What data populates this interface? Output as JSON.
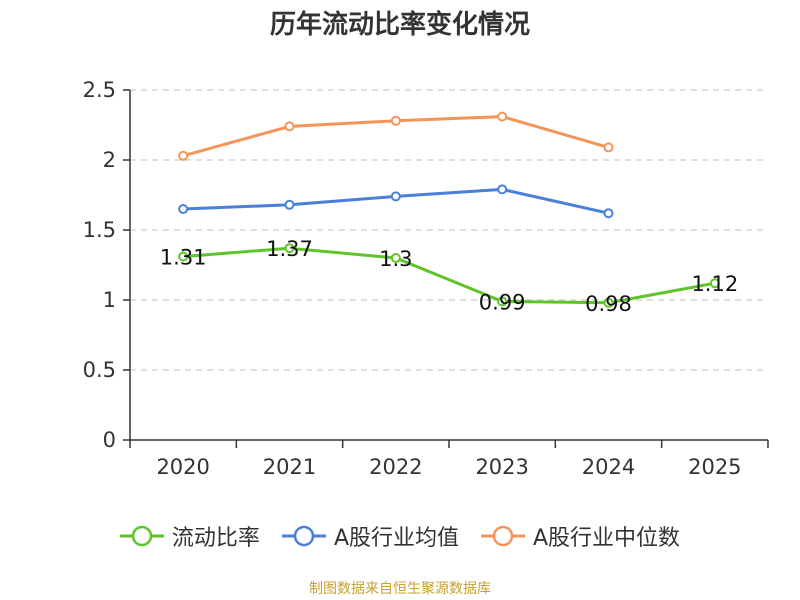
{
  "title": "历年流动比率变化情况",
  "source": "制图数据来自恒生聚源数据库",
  "colors": {
    "flow_ratio": "#5ec42a",
    "industry_avg": "#4a7fdb",
    "industry_median": "#f59458",
    "grid": "#cccccc",
    "axis": "#333333"
  },
  "chart_data": {
    "type": "line",
    "title": "历年流动比率变化情况",
    "categories": [
      "2020",
      "2021",
      "2022",
      "2023",
      "2024",
      "2025"
    ],
    "ylim": [
      0,
      2.5
    ],
    "yticks": [
      "0",
      "0.5",
      "1",
      "1.5",
      "2",
      "2.5"
    ],
    "grid": true,
    "legend_position": "bottom",
    "series": [
      {
        "name": "流动比率",
        "color_key": "flow_ratio",
        "values": [
          1.31,
          1.37,
          1.3,
          0.99,
          0.98,
          1.12
        ],
        "labels": [
          "1.31",
          "1.37",
          "1.3",
          "0.99",
          "0.98",
          "1.12"
        ]
      },
      {
        "name": "A股行业均值",
        "color_key": "industry_avg",
        "values": [
          1.65,
          1.68,
          1.74,
          1.79,
          1.62,
          null
        ]
      },
      {
        "name": "A股行业中位数",
        "color_key": "industry_median",
        "values": [
          2.03,
          2.24,
          2.28,
          2.31,
          2.09,
          null
        ]
      }
    ]
  }
}
